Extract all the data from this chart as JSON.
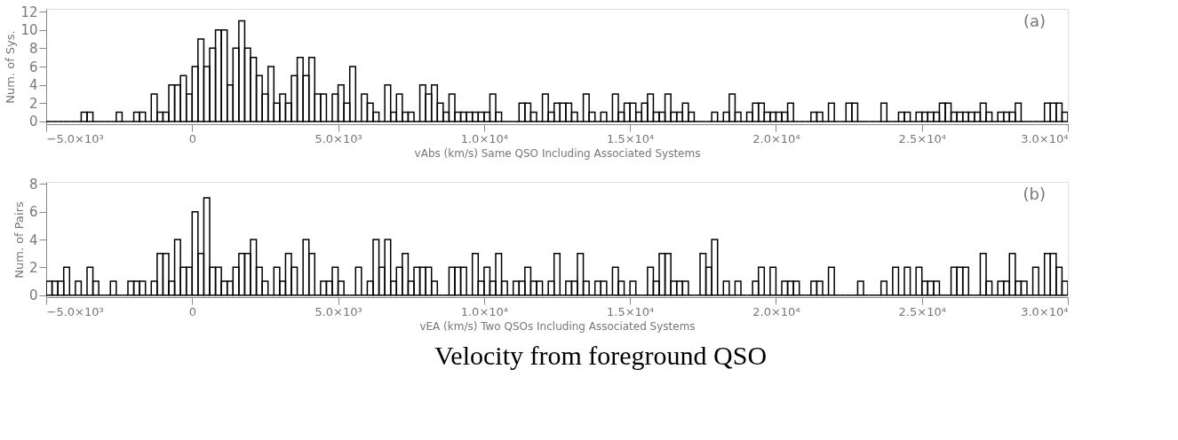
{
  "chart_data": [
    {
      "type": "histogram",
      "xlabel": "vAbs (km/s)  Same QSO Including Associated Systems",
      "ylabel": "Num. of Sys.",
      "bins": [
        -5000,
        -4800,
        -4600,
        -4400,
        -4200,
        -4000,
        -3800,
        -3600,
        -3400,
        -3200,
        -3000,
        -2800,
        -2600,
        -2400,
        -2200,
        -2000,
        -1800,
        -1600,
        -1400,
        -1200,
        -1000,
        -800,
        -600,
        -400,
        -200,
        0,
        200,
        400,
        600,
        800,
        1000,
        1200,
        1400,
        1600,
        1800,
        2000,
        2200,
        2400,
        2600,
        2800,
        3000,
        3200,
        3400,
        3600,
        3800,
        4000,
        4200,
        4400,
        4600,
        4800,
        5000,
        5200,
        5400,
        5600,
        5800,
        6000,
        6200,
        6400,
        6600,
        6800,
        7000,
        7200,
        7400,
        7600,
        7800,
        8000,
        8200,
        8400,
        8600,
        8800,
        9000,
        9200,
        9400,
        9600,
        9800,
        10000,
        10200,
        10400,
        10600,
        10800,
        11000,
        11200,
        11400,
        11600,
        11800,
        12000,
        12200,
        12400,
        12600,
        12800,
        13000,
        13200,
        13400,
        13600,
        13800,
        14000,
        14200,
        14400,
        14600,
        14800,
        15000,
        15200,
        15400,
        15600,
        15800,
        16000,
        16200,
        16400,
        16600,
        16800,
        17000,
        17200,
        17400,
        17600,
        17800,
        18000,
        18200,
        18400,
        18600,
        18800,
        19000,
        19200,
        19400,
        19600,
        19800,
        20000,
        20200,
        20400,
        20600,
        20800,
        21000,
        21200,
        21400,
        21600,
        21800,
        22000,
        22200,
        22400,
        22600,
        22800,
        23000,
        23200,
        23400,
        23600,
        23800,
        24000,
        24200,
        24400,
        24600,
        24800,
        25000,
        25200,
        25400,
        25600,
        25800,
        26000,
        26200,
        26400,
        26600,
        26800,
        27000,
        27200,
        27400,
        27600,
        27800,
        28000,
        28200,
        28400,
        28600,
        28800,
        29000,
        29200,
        29400,
        29600,
        29800,
        30000
      ],
      "values": [
        0,
        0,
        0,
        0,
        0,
        0,
        1,
        1,
        0,
        0,
        0,
        0,
        1,
        0,
        0,
        1,
        1,
        0,
        3,
        1,
        1,
        4,
        4,
        5,
        3,
        6,
        9,
        6,
        8,
        10,
        10,
        4,
        8,
        11,
        8,
        7,
        5,
        3,
        6,
        2,
        3,
        2,
        5,
        7,
        5,
        7,
        3,
        3,
        0,
        3,
        4,
        2,
        6,
        0,
        3,
        2,
        1,
        0,
        4,
        1,
        3,
        1,
        1,
        0,
        4,
        3,
        4,
        2,
        1,
        3,
        1,
        1,
        1,
        1,
        1,
        1,
        3,
        1,
        0,
        0,
        0,
        2,
        2,
        1,
        0,
        3,
        1,
        2,
        2,
        2,
        1,
        0,
        3,
        1,
        0,
        1,
        0,
        3,
        1,
        2,
        2,
        1,
        2,
        3,
        1,
        1,
        3,
        1,
        1,
        2,
        1,
        0,
        0,
        0,
        1,
        0,
        1,
        3,
        1,
        0,
        1,
        2,
        2,
        1,
        1,
        1,
        1,
        2,
        0,
        0,
        0,
        1,
        1,
        0,
        2,
        0,
        0,
        2,
        2,
        0,
        0,
        0,
        0,
        2,
        0,
        0,
        1,
        1,
        0,
        1,
        1,
        1,
        1,
        2,
        2,
        1,
        1,
        1,
        1,
        1,
        2,
        1,
        0,
        1,
        1,
        1,
        2,
        0,
        0,
        0,
        0,
        2,
        2,
        2,
        1
      ],
      "color": "#000000",
      "xlim": [
        -5000,
        30000
      ],
      "ylim": [
        -0.3,
        12.3
      ],
      "xticks": [
        {
          "value": -5000,
          "label": "−5.0×10³"
        },
        0,
        {
          "value": 5000,
          "label": "5.0×10³"
        },
        {
          "value": 10000,
          "label": "1.0×10⁴"
        },
        {
          "value": 15000,
          "label": "1.5×10⁴"
        },
        {
          "value": 20000,
          "label": "2.0×10⁴"
        },
        {
          "value": 25000,
          "label": "2.5×10⁴"
        },
        {
          "value": 30000,
          "label": "3.0×10⁴"
        }
      ],
      "yticks": [
        0,
        2,
        4,
        6,
        8,
        10,
        12
      ],
      "grid": false,
      "annotations": [
        "(a)"
      ]
    },
    {
      "type": "histogram",
      "xlabel": "vEA (km/s)  Two QSOs Including Associated Systems",
      "ylabel": "Num. of Pairs",
      "bins": [
        -5000,
        -4800,
        -4600,
        -4400,
        -4200,
        -4000,
        -3800,
        -3600,
        -3400,
        -3200,
        -3000,
        -2800,
        -2600,
        -2400,
        -2200,
        -2000,
        -1800,
        -1600,
        -1400,
        -1200,
        -1000,
        -800,
        -600,
        -400,
        -200,
        0,
        200,
        400,
        600,
        800,
        1000,
        1200,
        1400,
        1600,
        1800,
        2000,
        2200,
        2400,
        2600,
        2800,
        3000,
        3200,
        3400,
        3600,
        3800,
        4000,
        4200,
        4400,
        4600,
        4800,
        5000,
        5200,
        5400,
        5600,
        5800,
        6000,
        6200,
        6400,
        6600,
        6800,
        7000,
        7200,
        7400,
        7600,
        7800,
        8000,
        8200,
        8400,
        8600,
        8800,
        9000,
        9200,
        9400,
        9600,
        9800,
        10000,
        10200,
        10400,
        10600,
        10800,
        11000,
        11200,
        11400,
        11600,
        11800,
        12000,
        12200,
        12400,
        12600,
        12800,
        13000,
        13200,
        13400,
        13600,
        13800,
        14000,
        14200,
        14400,
        14600,
        14800,
        15000,
        15200,
        15400,
        15600,
        15800,
        16000,
        16200,
        16400,
        16600,
        16800,
        17000,
        17200,
        17400,
        17600,
        17800,
        18000,
        18200,
        18400,
        18600,
        18800,
        19000,
        19200,
        19400,
        19600,
        19800,
        20000,
        20200,
        20400,
        20600,
        20800,
        21000,
        21200,
        21400,
        21600,
        21800,
        22000,
        22200,
        22400,
        22600,
        22800,
        23000,
        23200,
        23400,
        23600,
        23800,
        24000,
        24200,
        24400,
        24600,
        24800,
        25000,
        25200,
        25400,
        25600,
        25800,
        26000,
        26200,
        26400,
        26600,
        26800,
        27000,
        27200,
        27400,
        27600,
        27800,
        28000,
        28200,
        28400,
        28600,
        28800,
        29000,
        29200,
        29400,
        29600,
        29800,
        30000
      ],
      "values": [
        1,
        1,
        1,
        2,
        0,
        1,
        0,
        2,
        1,
        0,
        0,
        1,
        0,
        0,
        1,
        1,
        1,
        0,
        1,
        3,
        3,
        1,
        4,
        2,
        2,
        6,
        3,
        7,
        2,
        2,
        1,
        1,
        2,
        3,
        3,
        4,
        2,
        1,
        0,
        2,
        1,
        3,
        2,
        0,
        4,
        3,
        0,
        1,
        1,
        2,
        1,
        0,
        0,
        2,
        0,
        1,
        4,
        2,
        4,
        1,
        2,
        3,
        1,
        2,
        2,
        2,
        1,
        0,
        0,
        2,
        2,
        2,
        0,
        3,
        1,
        2,
        1,
        3,
        1,
        0,
        1,
        1,
        2,
        1,
        1,
        0,
        1,
        3,
        0,
        1,
        1,
        3,
        1,
        0,
        1,
        1,
        0,
        2,
        1,
        0,
        1,
        0,
        0,
        2,
        1,
        3,
        3,
        1,
        1,
        1,
        0,
        0,
        3,
        2,
        4,
        0,
        1,
        0,
        1,
        0,
        0,
        1,
        2,
        0,
        2,
        0,
        1,
        1,
        1,
        0,
        0,
        1,
        1,
        0,
        2,
        0,
        0,
        0,
        0,
        1,
        0,
        0,
        0,
        1,
        0,
        2,
        0,
        2,
        0,
        2,
        1,
        1,
        1,
        0,
        0,
        2,
        2,
        2,
        0,
        0,
        3,
        1,
        0,
        1,
        1,
        3,
        1,
        1,
        0,
        2,
        0,
        3,
        3,
        2,
        1
      ],
      "color": "#000000",
      "xlim": [
        -5000,
        30000
      ],
      "ylim": [
        -0.15,
        8.15
      ],
      "xticks": [
        {
          "value": -5000,
          "label": "−5.0×10³"
        },
        0,
        {
          "value": 5000,
          "label": "5.0×10³"
        },
        {
          "value": 10000,
          "label": "1.0×10⁴"
        },
        {
          "value": 15000,
          "label": "1.5×10⁴"
        },
        {
          "value": 20000,
          "label": "2.0×10⁴"
        },
        {
          "value": 25000,
          "label": "2.5×10⁴"
        },
        {
          "value": 30000,
          "label": "3.0×10⁴"
        }
      ],
      "yticks": [
        0,
        2,
        4,
        6,
        8
      ],
      "grid": false,
      "annotations": [
        "(b)",
        "Velocity from foreground QSO"
      ]
    }
  ]
}
